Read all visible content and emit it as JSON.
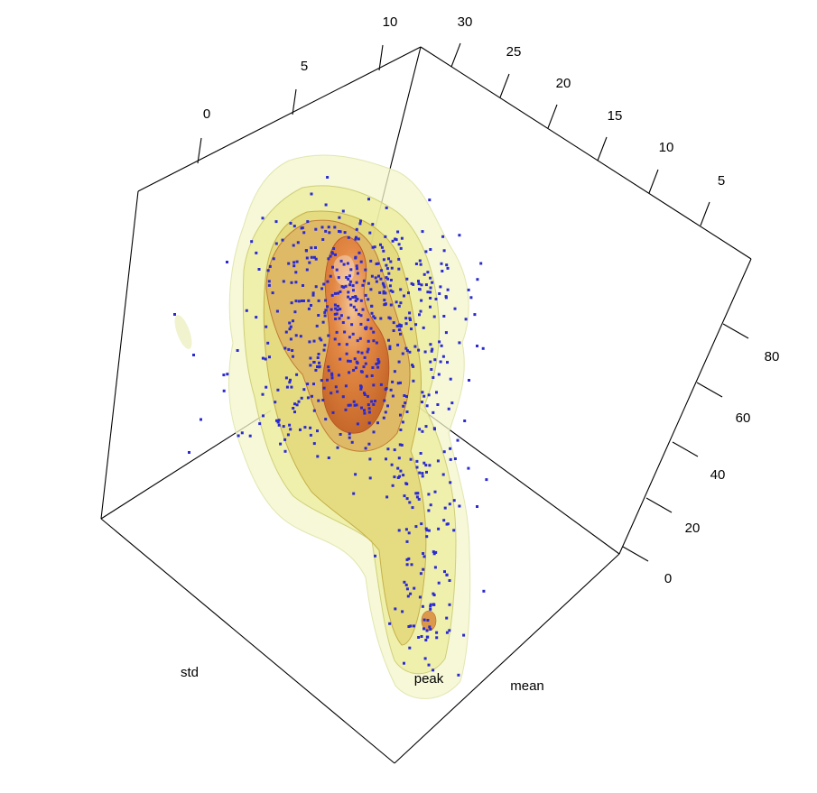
{
  "chart_data": {
    "type": "scatter",
    "title": "",
    "axes": {
      "std": {
        "label": "std",
        "ticks": [
          "0",
          "5",
          "10"
        ],
        "tick_values": [
          0,
          5,
          10
        ]
      },
      "mean": {
        "label": "mean",
        "ticks": [
          "5",
          "10",
          "15",
          "20",
          "25",
          "30"
        ],
        "tick_values": [
          5,
          10,
          15,
          20,
          25,
          30
        ]
      },
      "peak": {
        "label": "peak",
        "ticks": [
          "0",
          "20",
          "40",
          "60",
          "80"
        ],
        "tick_values": [
          0,
          20,
          40,
          60,
          80
        ]
      }
    },
    "density_contours": [
      {
        "level": "outer",
        "color": "#f3f5c9"
      },
      {
        "level": "2",
        "color": "#eaea8e"
      },
      {
        "level": "3",
        "color": "#dcc95a"
      },
      {
        "level": "4",
        "color": "#d89548"
      },
      {
        "level": "core",
        "color": "#e07a3a"
      }
    ],
    "point_color": "#2a2ad0",
    "box": "on",
    "grid": "off",
    "legend": "none"
  }
}
